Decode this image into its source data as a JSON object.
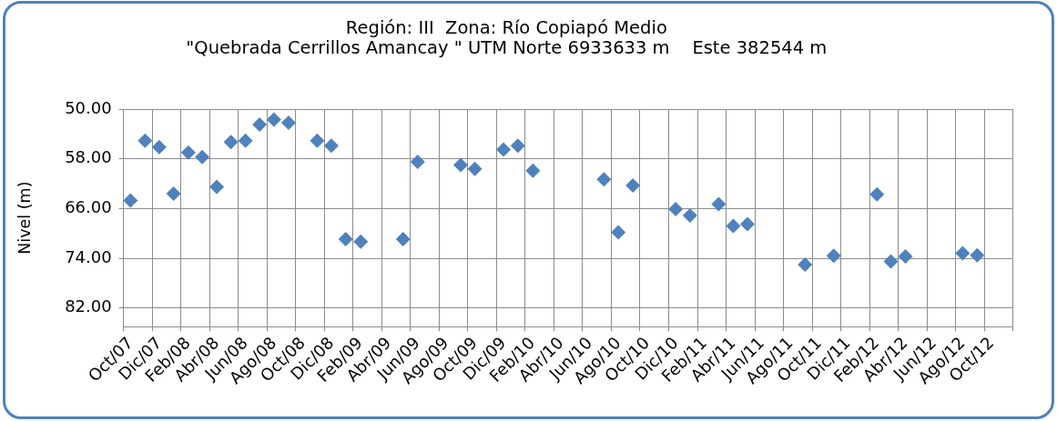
{
  "chart_data": {
    "type": "scatter",
    "title": "Región: III  Zona: Río Copiapó Medio",
    "subtitle": "\"Quebrada Cerrillos Amancay \" UTM Norte 6933633 m    Este 382544 m",
    "ylabel": "Nivel (m)",
    "x": [
      "2007-10-16",
      "2007-11-16",
      "2007-12-16",
      "2008-01-16",
      "2008-02-16",
      "2008-03-16",
      "2008-04-16",
      "2008-05-16",
      "2008-06-16",
      "2008-07-16",
      "2008-08-16",
      "2008-09-16",
      "2008-11-16",
      "2008-12-16",
      "2009-01-16",
      "2009-02-16",
      "2009-05-16",
      "2009-06-16",
      "2009-09-16",
      "2009-10-16",
      "2009-12-16",
      "2010-01-16",
      "2010-02-16",
      "2010-07-16",
      "2010-08-16",
      "2010-09-16",
      "2010-12-16",
      "2011-01-16",
      "2011-03-16",
      "2011-04-16",
      "2011-05-16",
      "2011-09-16",
      "2011-11-16",
      "2012-02-16",
      "2012-03-16",
      "2012-04-16",
      "2012-08-16",
      "2012-09-16"
    ],
    "values": [
      64.7,
      55.1,
      56.1,
      63.6,
      57.0,
      57.7,
      62.5,
      55.3,
      55.1,
      52.5,
      51.7,
      52.2,
      55.1,
      55.9,
      70.9,
      71.3,
      70.9,
      58.5,
      59.0,
      59.6,
      56.5,
      55.9,
      59.9,
      61.3,
      69.8,
      62.3,
      66.1,
      67.1,
      65.3,
      68.8,
      68.5,
      75.0,
      73.6,
      63.7,
      74.5,
      73.7,
      73.2,
      73.5
    ],
    "color": "#4f81bd",
    "marker": "diamond",
    "grid": true,
    "xlim": [
      "2007-10",
      "2012-12"
    ],
    "xticks": [
      {
        "value": "2007-10",
        "label": "Oct/07"
      },
      {
        "value": "2007-12",
        "label": "Dic/07"
      },
      {
        "value": "2008-02",
        "label": "Feb/08"
      },
      {
        "value": "2008-04",
        "label": "Abr/08"
      },
      {
        "value": "2008-06",
        "label": "Jun/08"
      },
      {
        "value": "2008-08",
        "label": "Ago/08"
      },
      {
        "value": "2008-10",
        "label": "Oct/08"
      },
      {
        "value": "2008-12",
        "label": "Dic/08"
      },
      {
        "value": "2009-02",
        "label": "Feb/09"
      },
      {
        "value": "2009-04",
        "label": "Abr/09"
      },
      {
        "value": "2009-06",
        "label": "Jun/09"
      },
      {
        "value": "2009-08",
        "label": "Ago/09"
      },
      {
        "value": "2009-10",
        "label": "Oct/09"
      },
      {
        "value": "2009-12",
        "label": "Dic/09"
      },
      {
        "value": "2010-02",
        "label": "Feb/10"
      },
      {
        "value": "2010-04",
        "label": "Abr/10"
      },
      {
        "value": "2010-06",
        "label": "Jun/10"
      },
      {
        "value": "2010-08",
        "label": "Ago/10"
      },
      {
        "value": "2010-10",
        "label": "Oct/10"
      },
      {
        "value": "2010-12",
        "label": "Dic/10"
      },
      {
        "value": "2011-02",
        "label": "Feb/11"
      },
      {
        "value": "2011-04",
        "label": "Abr/11"
      },
      {
        "value": "2011-06",
        "label": "Jun/11"
      },
      {
        "value": "2011-08",
        "label": "Ago/11"
      },
      {
        "value": "2011-10",
        "label": "Oct/11"
      },
      {
        "value": "2011-12",
        "label": "Dic/11"
      },
      {
        "value": "2012-02",
        "label": "Feb/12"
      },
      {
        "value": "2012-04",
        "label": "Abr/12"
      },
      {
        "value": "2012-06",
        "label": "Jun/12"
      },
      {
        "value": "2012-08",
        "label": "Ago/12"
      },
      {
        "value": "2012-10",
        "label": "Oct/12"
      },
      {
        "value": "2012-12",
        "label": null
      }
    ],
    "ylim": [
      85,
      50
    ],
    "yticks": [
      {
        "value": 50,
        "label": "50.00"
      },
      {
        "value": 58,
        "label": "58.00"
      },
      {
        "value": 66,
        "label": "66.00"
      },
      {
        "value": 74,
        "label": "74.00"
      },
      {
        "value": 82,
        "label": "82.00"
      }
    ]
  }
}
